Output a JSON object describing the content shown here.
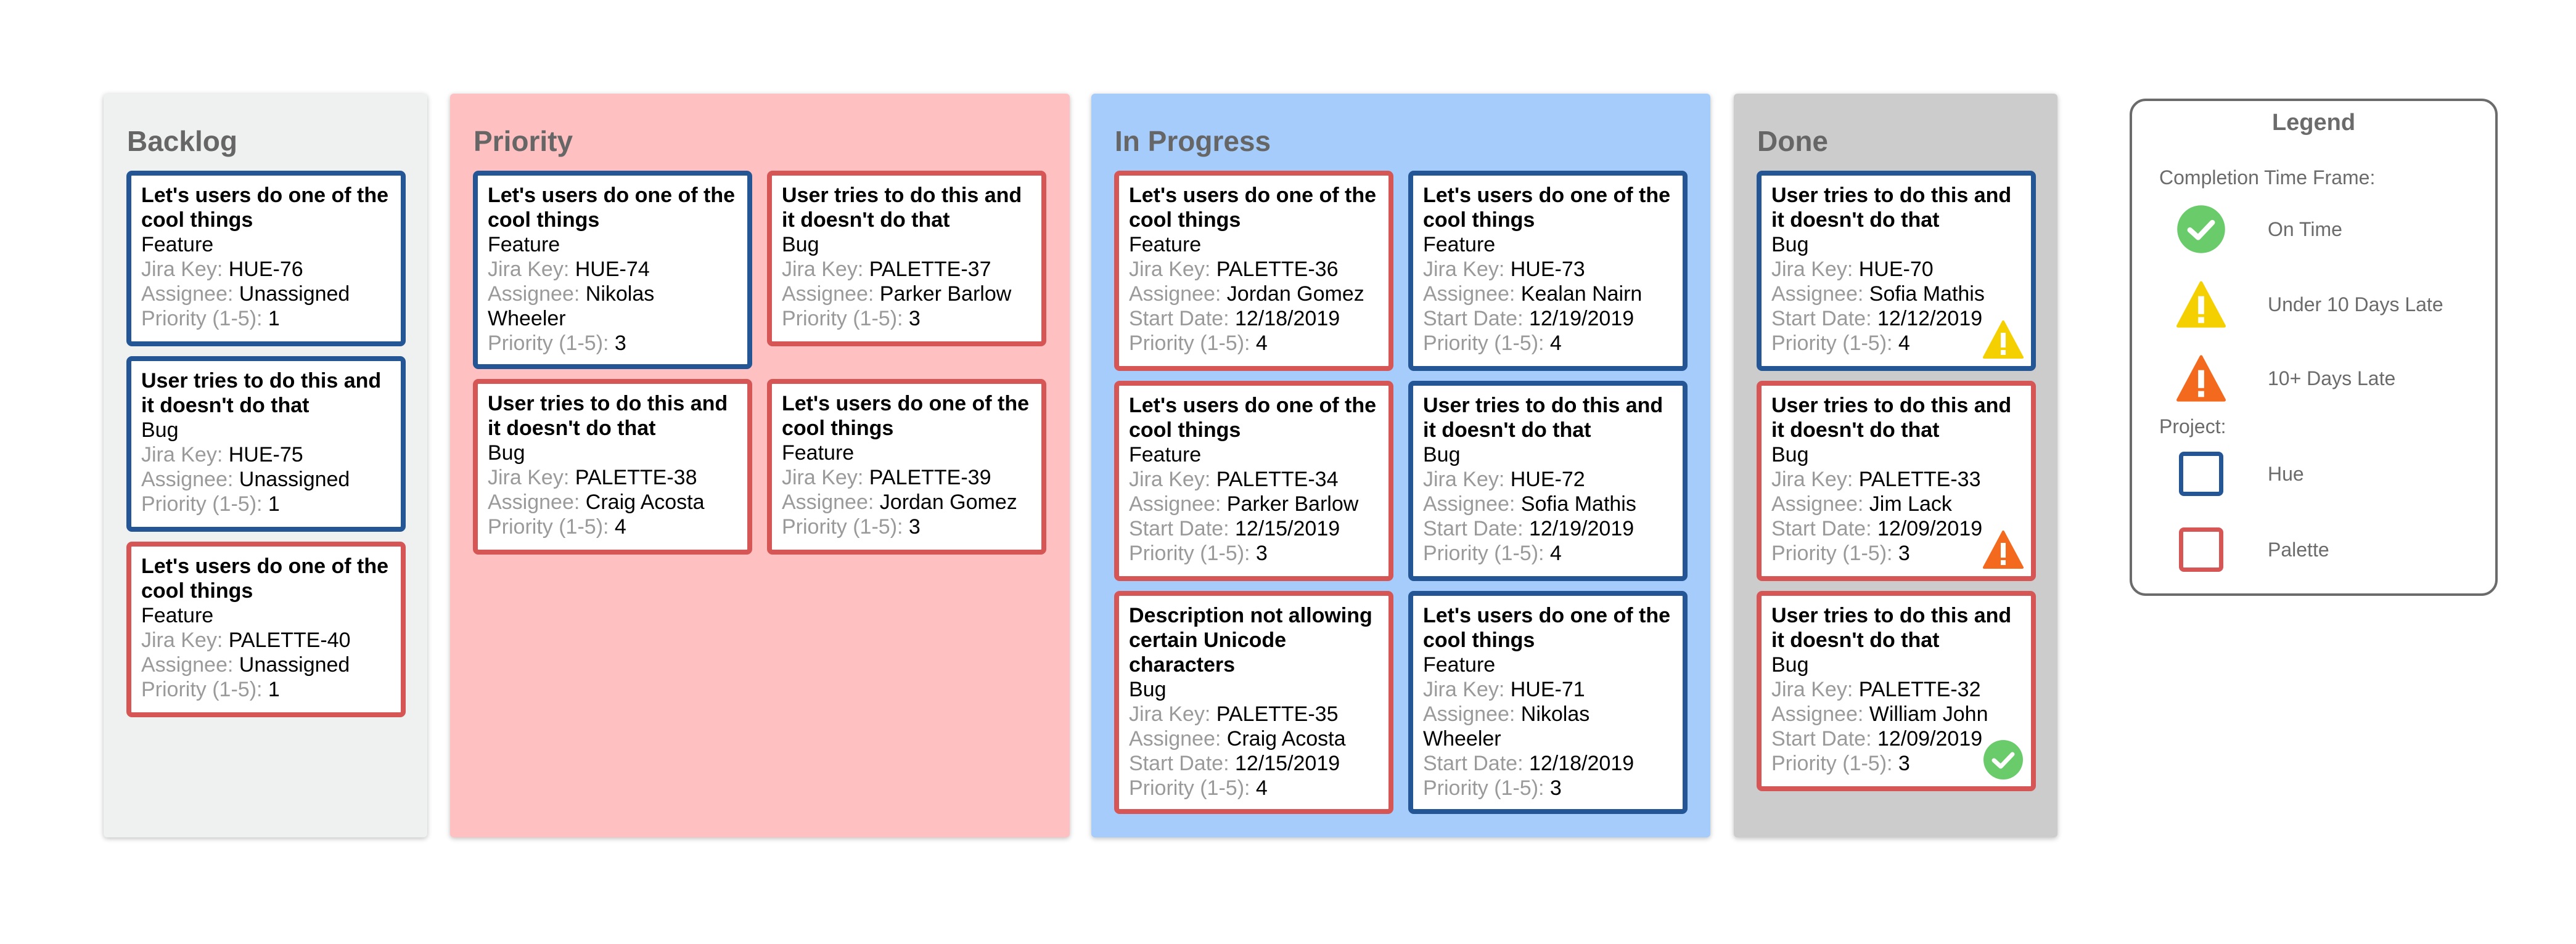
{
  "labels": {
    "jira_key": "Jira Key:",
    "assignee": "Assignee:",
    "start_date": "Start Date:",
    "priority": "Priority (1-5):"
  },
  "colors": {
    "hue": "#245696",
    "palette": "#d65555",
    "on_time": "#6acb6a",
    "under_10": "#f5d000",
    "over_10": "#f36a1e"
  },
  "columns": [
    {
      "title": "Backlog",
      "bg": "#eff0f0",
      "cards": [
        {
          "project": "hue",
          "title": "Let's users do one of the cool things",
          "type": "Feature",
          "jira_key": "HUE-76",
          "assignee": "Unassigned",
          "priority": "1"
        },
        {
          "project": "hue",
          "title": "User tries to do this and it doesn't do that",
          "type": "Bug",
          "jira_key": "HUE-75",
          "assignee": "Unassigned",
          "priority": "1"
        },
        {
          "project": "palette",
          "title": "Let's users do one of the cool things",
          "type": "Feature",
          "jira_key": "PALETTE-40",
          "assignee": "Unassigned",
          "priority": "1"
        }
      ]
    },
    {
      "title": "Priority",
      "bg": "#fec0c0",
      "cards": [
        {
          "project": "hue",
          "title": "Let's users do one of the cool things",
          "type": "Feature",
          "jira_key": "HUE-74",
          "assignee": "Nikolas Wheeler",
          "priority": "3"
        },
        {
          "project": "palette",
          "title": "User tries to do this and it doesn't do that",
          "type": "Bug",
          "jira_key": "PALETTE-37",
          "assignee": "Parker Barlow",
          "priority": "3"
        },
        {
          "project": "palette",
          "title": "User tries to do this and it doesn't do that",
          "type": "Bug",
          "jira_key": "PALETTE-38",
          "assignee": "Craig Acosta",
          "priority": "4"
        },
        {
          "project": "palette",
          "title": "Let's users do one of the cool things",
          "type": "Feature",
          "jira_key": "PALETTE-39",
          "assignee": "Jordan Gomez",
          "priority": "3"
        }
      ]
    },
    {
      "title": "In Progress",
      "bg": "#a6ccfc",
      "cards": [
        {
          "project": "palette",
          "title": "Let's users do one of the cool things",
          "type": "Feature",
          "jira_key": "PALETTE-36",
          "assignee": "Jordan Gomez",
          "start_date": "12/18/2019",
          "priority": "4"
        },
        {
          "project": "hue",
          "title": "Let's users do one of the cool things",
          "type": "Feature",
          "jira_key": "HUE-73",
          "assignee": "Kealan Nairn",
          "start_date": "12/19/2019",
          "priority": "4"
        },
        {
          "project": "palette",
          "title": "Let's users do one of the cool things",
          "type": "Feature",
          "jira_key": "PALETTE-34",
          "assignee": "Parker Barlow",
          "start_date": "12/15/2019",
          "priority": "3"
        },
        {
          "project": "hue",
          "title": "User tries to do this and it doesn't do that",
          "type": "Bug",
          "jira_key": "HUE-72",
          "assignee": "Sofia Mathis",
          "start_date": "12/19/2019",
          "priority": "4"
        },
        {
          "project": "palette",
          "title": "Description not allowing certain Unicode characters",
          "type": "Bug",
          "jira_key": "PALETTE-35",
          "assignee": "Craig Acosta",
          "start_date": "12/15/2019",
          "priority": "4"
        },
        {
          "project": "hue",
          "title": "Let's users do one of the cool things",
          "type": "Feature",
          "jira_key": "HUE-71",
          "assignee": "Nikolas Wheeler",
          "start_date": "12/18/2019",
          "priority": "3"
        }
      ]
    },
    {
      "title": "Done",
      "bg": "#cccccc",
      "cards": [
        {
          "project": "hue",
          "title": "User tries to do this and it doesn't do that",
          "type": "Bug",
          "jira_key": "HUE-70",
          "assignee": "Sofia Mathis",
          "start_date": "12/12/2019",
          "priority": "4",
          "status": "under_10"
        },
        {
          "project": "palette",
          "title": "User tries to do this and it doesn't do that",
          "type": "Bug",
          "jira_key": "PALETTE-33",
          "assignee": "Jim Lack",
          "start_date": "12/09/2019",
          "priority": "3",
          "status": "over_10"
        },
        {
          "project": "palette",
          "title": "User tries to do this and it doesn't do that",
          "type": "Bug",
          "jira_key": "PALETTE-32",
          "assignee": "William John",
          "start_date": "12/09/2019",
          "priority": "3",
          "status": "on_time"
        }
      ]
    }
  ],
  "legend": {
    "title": "Legend",
    "time_frame_heading": "Completion Time Frame:",
    "on_time": "On Time",
    "under_10": "Under 10 Days Late",
    "over_10": "10+ Days Late",
    "project_heading": "Project:",
    "hue": "Hue",
    "palette": "Palette"
  }
}
